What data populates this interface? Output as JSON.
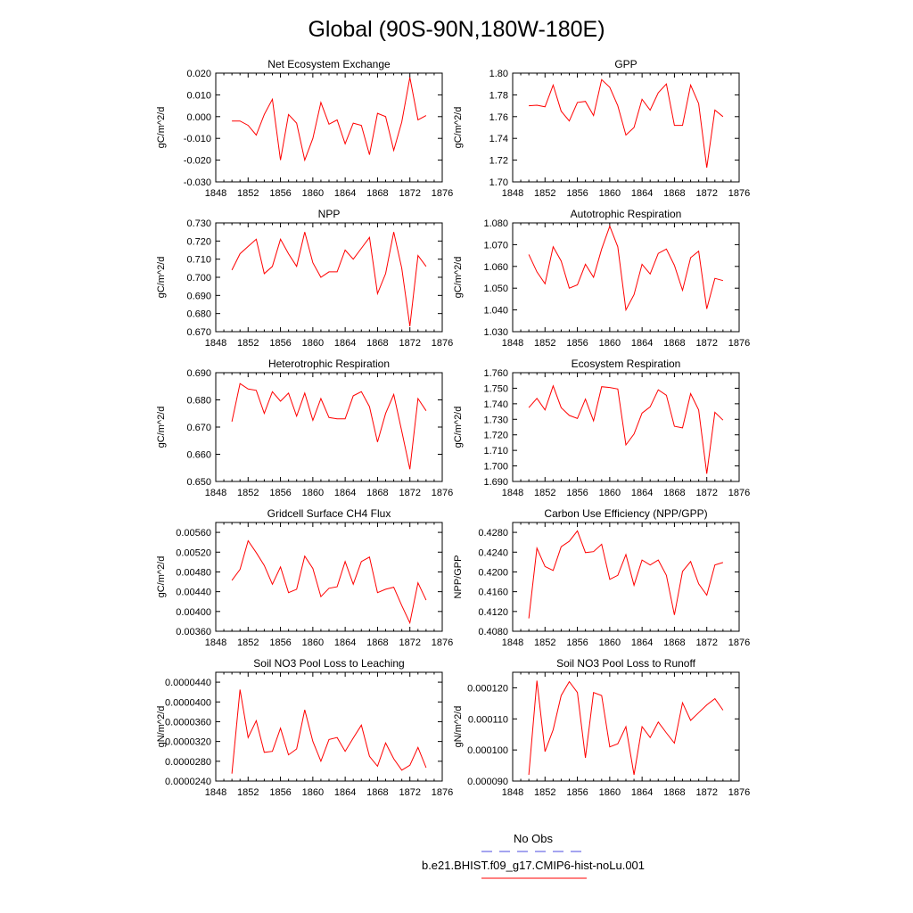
{
  "figure": {
    "title": "Global (90S-90N,180W-180E)",
    "legend": {
      "entries": [
        {
          "label": "No Obs",
          "color": "#4a4ae0",
          "style": "dashed"
        },
        {
          "label": "b.e21.BHIST.f09_g17.CMIP6-hist-noLu.001",
          "color": "#ff0000",
          "style": "solid"
        }
      ]
    }
  },
  "chart_data": [
    {
      "type": "line",
      "title": "Net Ecosystem Exchange",
      "ylabel": "gC/m^2/d",
      "xlim": [
        1848,
        1876
      ],
      "xticks": [
        1848,
        1852,
        1856,
        1860,
        1864,
        1868,
        1872,
        1876
      ],
      "ylim": [
        -0.03,
        0.02
      ],
      "yticks": [
        -0.03,
        -0.02,
        -0.01,
        0.0,
        0.01,
        0.02
      ],
      "ytick_labels": [
        "-0.030",
        "-0.020",
        "-0.010",
        "0.000",
        "0.010",
        "0.020"
      ],
      "series": [
        {
          "color": "#ff0000",
          "x": [
            1850,
            1851,
            1852,
            1853,
            1854,
            1855,
            1856,
            1857,
            1858,
            1859,
            1860,
            1861,
            1862,
            1863,
            1864,
            1865,
            1866,
            1867,
            1868,
            1869,
            1870,
            1871,
            1872,
            1873,
            1874
          ],
          "y": [
            -0.002,
            -0.002,
            -0.004,
            -0.0085,
            0.001,
            0.008,
            -0.02,
            0.001,
            -0.003,
            -0.02,
            -0.01,
            0.0065,
            -0.0035,
            -0.0015,
            -0.0125,
            -0.003,
            -0.004,
            -0.0175,
            0.0015,
            0.0,
            -0.0155,
            -0.0025,
            0.018,
            -0.0015,
            0.0005
          ]
        }
      ]
    },
    {
      "type": "line",
      "title": "GPP",
      "ylabel": "gC/m^2/d",
      "xlim": [
        1848,
        1876
      ],
      "xticks": [
        1848,
        1852,
        1856,
        1860,
        1864,
        1868,
        1872,
        1876
      ],
      "ylim": [
        1.7,
        1.8
      ],
      "yticks": [
        1.7,
        1.72,
        1.74,
        1.76,
        1.78,
        1.8
      ],
      "ytick_labels": [
        "1.70",
        "1.72",
        "1.74",
        "1.76",
        "1.78",
        "1.80"
      ],
      "series": [
        {
          "color": "#ff0000",
          "x": [
            1850,
            1851,
            1852,
            1853,
            1854,
            1855,
            1856,
            1857,
            1858,
            1859,
            1860,
            1861,
            1862,
            1863,
            1864,
            1865,
            1866,
            1867,
            1868,
            1869,
            1870,
            1871,
            1872,
            1873,
            1874
          ],
          "y": [
            1.77,
            1.7705,
            1.769,
            1.789,
            1.765,
            1.756,
            1.773,
            1.774,
            1.761,
            1.794,
            1.787,
            1.77,
            1.743,
            1.75,
            1.776,
            1.766,
            1.782,
            1.79,
            1.752,
            1.752,
            1.789,
            1.772,
            1.713,
            1.766,
            1.76
          ]
        }
      ]
    },
    {
      "type": "line",
      "title": "NPP",
      "ylabel": "gC/m^2/d",
      "xlim": [
        1848,
        1876
      ],
      "xticks": [
        1848,
        1852,
        1856,
        1860,
        1864,
        1868,
        1872,
        1876
      ],
      "ylim": [
        0.67,
        0.73
      ],
      "yticks": [
        0.67,
        0.68,
        0.69,
        0.7,
        0.71,
        0.72,
        0.73
      ],
      "ytick_labels": [
        "0.670",
        "0.680",
        "0.690",
        "0.700",
        "0.710",
        "0.720",
        "0.730"
      ],
      "series": [
        {
          "color": "#ff0000",
          "x": [
            1850,
            1851,
            1852,
            1853,
            1854,
            1855,
            1856,
            1857,
            1858,
            1859,
            1860,
            1861,
            1862,
            1863,
            1864,
            1865,
            1866,
            1867,
            1868,
            1869,
            1870,
            1871,
            1872,
            1873,
            1874
          ],
          "y": [
            0.704,
            0.713,
            0.717,
            0.721,
            0.702,
            0.706,
            0.721,
            0.713,
            0.706,
            0.725,
            0.708,
            0.7,
            0.703,
            0.703,
            0.715,
            0.71,
            0.716,
            0.722,
            0.691,
            0.702,
            0.725,
            0.705,
            0.673,
            0.712,
            0.706
          ]
        }
      ]
    },
    {
      "type": "line",
      "title": "Autotrophic Respiration",
      "ylabel": "gC/m^2/d",
      "xlim": [
        1848,
        1876
      ],
      "xticks": [
        1848,
        1852,
        1856,
        1860,
        1864,
        1868,
        1872,
        1876
      ],
      "ylim": [
        1.03,
        1.08
      ],
      "yticks": [
        1.03,
        1.04,
        1.05,
        1.06,
        1.07,
        1.08
      ],
      "ytick_labels": [
        "1.030",
        "1.040",
        "1.050",
        "1.060",
        "1.070",
        "1.080"
      ],
      "series": [
        {
          "color": "#ff0000",
          "x": [
            1850,
            1851,
            1852,
            1853,
            1854,
            1855,
            1856,
            1857,
            1858,
            1859,
            1860,
            1861,
            1862,
            1863,
            1864,
            1865,
            1866,
            1867,
            1868,
            1869,
            1870,
            1871,
            1872,
            1873,
            1874
          ],
          "y": [
            1.0655,
            1.0575,
            1.052,
            1.069,
            1.0625,
            1.05,
            1.0515,
            1.061,
            1.055,
            1.068,
            1.0785,
            1.069,
            1.04,
            1.047,
            1.061,
            1.0565,
            1.066,
            1.068,
            1.0605,
            1.049,
            1.064,
            1.067,
            1.0405,
            1.0545,
            1.0535
          ]
        }
      ]
    },
    {
      "type": "line",
      "title": "Heterotrophic Respiration",
      "ylabel": "gC/m^2/d",
      "xlim": [
        1848,
        1876
      ],
      "xticks": [
        1848,
        1852,
        1856,
        1860,
        1864,
        1868,
        1872,
        1876
      ],
      "ylim": [
        0.65,
        0.69
      ],
      "yticks": [
        0.65,
        0.66,
        0.67,
        0.68,
        0.69
      ],
      "ytick_labels": [
        "0.650",
        "0.660",
        "0.670",
        "0.680",
        "0.690"
      ],
      "series": [
        {
          "color": "#ff0000",
          "x": [
            1850,
            1851,
            1852,
            1853,
            1854,
            1855,
            1856,
            1857,
            1858,
            1859,
            1860,
            1861,
            1862,
            1863,
            1864,
            1865,
            1866,
            1867,
            1868,
            1869,
            1870,
            1871,
            1872,
            1873,
            1874
          ],
          "y": [
            0.672,
            0.686,
            0.684,
            0.6835,
            0.675,
            0.683,
            0.6795,
            0.6825,
            0.674,
            0.6825,
            0.6725,
            0.6805,
            0.6735,
            0.673,
            0.673,
            0.6815,
            0.683,
            0.6775,
            0.6645,
            0.675,
            0.682,
            0.6685,
            0.6545,
            0.6805,
            0.676
          ]
        }
      ]
    },
    {
      "type": "line",
      "title": "Ecosystem Respiration",
      "ylabel": "gC/m^2/d",
      "xlim": [
        1848,
        1876
      ],
      "xticks": [
        1848,
        1852,
        1856,
        1860,
        1864,
        1868,
        1872,
        1876
      ],
      "ylim": [
        1.69,
        1.76
      ],
      "yticks": [
        1.69,
        1.7,
        1.71,
        1.72,
        1.73,
        1.74,
        1.75,
        1.76
      ],
      "ytick_labels": [
        "1.690",
        "1.700",
        "1.710",
        "1.720",
        "1.730",
        "1.740",
        "1.750",
        "1.760"
      ],
      "series": [
        {
          "color": "#ff0000",
          "x": [
            1850,
            1851,
            1852,
            1853,
            1854,
            1855,
            1856,
            1857,
            1858,
            1859,
            1860,
            1861,
            1862,
            1863,
            1864,
            1865,
            1866,
            1867,
            1868,
            1869,
            1870,
            1871,
            1872,
            1873,
            1874
          ],
          "y": [
            1.7375,
            1.7435,
            1.736,
            1.7515,
            1.7375,
            1.7325,
            1.7305,
            1.743,
            1.729,
            1.751,
            1.7505,
            1.7495,
            1.7135,
            1.7205,
            1.734,
            1.738,
            1.749,
            1.7455,
            1.7255,
            1.7245,
            1.7465,
            1.736,
            1.695,
            1.7345,
            1.7295
          ]
        }
      ]
    },
    {
      "type": "line",
      "title": "Gridcell Surface CH4 Flux",
      "ylabel": "gC/m^2/d",
      "xlim": [
        1848,
        1876
      ],
      "xticks": [
        1848,
        1852,
        1856,
        1860,
        1864,
        1868,
        1872,
        1876
      ],
      "ylim": [
        0.0036,
        0.0058
      ],
      "yticks": [
        0.0036,
        0.004,
        0.0044,
        0.0048,
        0.0052,
        0.0056
      ],
      "ytick_labels": [
        "0.00360",
        "0.00400",
        "0.00440",
        "0.00480",
        "0.00520",
        "0.00560"
      ],
      "series": [
        {
          "color": "#ff0000",
          "x": [
            1850,
            1851,
            1852,
            1853,
            1854,
            1855,
            1856,
            1857,
            1858,
            1859,
            1860,
            1861,
            1862,
            1863,
            1864,
            1865,
            1866,
            1867,
            1868,
            1869,
            1870,
            1871,
            1872,
            1873,
            1874
          ],
          "y": [
            0.00463,
            0.00485,
            0.00543,
            0.00519,
            0.00493,
            0.00455,
            0.0049,
            0.00438,
            0.00445,
            0.00512,
            0.00487,
            0.0043,
            0.00447,
            0.0045,
            0.00501,
            0.00455,
            0.00501,
            0.0051,
            0.00438,
            0.00445,
            0.00449,
            0.00412,
            0.00377,
            0.00458,
            0.00423
          ]
        }
      ]
    },
    {
      "type": "line",
      "title": "Carbon Use Efficiency (NPP/GPP)",
      "ylabel": "NPP/GPP",
      "xlim": [
        1848,
        1876
      ],
      "xticks": [
        1848,
        1852,
        1856,
        1860,
        1864,
        1868,
        1872,
        1876
      ],
      "ylim": [
        0.408,
        0.43
      ],
      "yticks": [
        0.408,
        0.412,
        0.416,
        0.42,
        0.424,
        0.428
      ],
      "ytick_labels": [
        "0.4080",
        "0.4120",
        "0.4160",
        "0.4200",
        "0.4240",
        "0.4280"
      ],
      "series": [
        {
          "color": "#ff0000",
          "x": [
            1850,
            1851,
            1852,
            1853,
            1854,
            1855,
            1856,
            1857,
            1858,
            1859,
            1860,
            1861,
            1862,
            1863,
            1864,
            1865,
            1866,
            1867,
            1868,
            1869,
            1870,
            1871,
            1872,
            1873,
            1874
          ],
          "y": [
            0.4106,
            0.4248,
            0.4211,
            0.4203,
            0.4251,
            0.4262,
            0.4283,
            0.4239,
            0.4241,
            0.4256,
            0.4185,
            0.4193,
            0.4235,
            0.4173,
            0.4224,
            0.4214,
            0.4224,
            0.4193,
            0.4113,
            0.4201,
            0.4221,
            0.4176,
            0.4153,
            0.4214,
            0.4219
          ]
        }
      ]
    },
    {
      "type": "line",
      "title": "Soil NO3 Pool Loss to Leaching",
      "ylabel": "gN/m^2/d",
      "xlim": [
        1848,
        1876
      ],
      "xticks": [
        1848,
        1852,
        1856,
        1860,
        1864,
        1868,
        1872,
        1876
      ],
      "ylim": [
        2.4e-05,
        4.6e-05
      ],
      "yticks": [
        2.4e-05,
        2.8e-05,
        3.2e-05,
        3.6e-05,
        4e-05,
        4.4e-05
      ],
      "ytick_labels": [
        "0.0000240",
        "0.0000280",
        "0.0000320",
        "0.0000360",
        "0.0000400",
        "0.0000440"
      ],
      "series": [
        {
          "color": "#ff0000",
          "x": [
            1850,
            1851,
            1852,
            1853,
            1854,
            1855,
            1856,
            1857,
            1858,
            1859,
            1860,
            1861,
            1862,
            1863,
            1864,
            1865,
            1866,
            1867,
            1868,
            1869,
            1870,
            1871,
            1872,
            1873,
            1874
          ],
          "y": [
            2.55e-05,
            4.25e-05,
            3.28e-05,
            3.62e-05,
            2.98e-05,
            3e-05,
            3.47e-05,
            2.93e-05,
            3.05e-05,
            3.84e-05,
            3.2e-05,
            2.8e-05,
            3.24e-05,
            3.28e-05,
            3e-05,
            3.27e-05,
            3.53e-05,
            2.9e-05,
            2.7e-05,
            3.17e-05,
            2.85e-05,
            2.62e-05,
            2.72e-05,
            3.08e-05,
            2.67e-05
          ]
        }
      ]
    },
    {
      "type": "line",
      "title": "Soil NO3 Pool Loss to Runoff",
      "ylabel": "gN/m^2/d",
      "xlim": [
        1848,
        1876
      ],
      "xticks": [
        1848,
        1852,
        1856,
        1860,
        1864,
        1868,
        1872,
        1876
      ],
      "ylim": [
        9e-05,
        0.000125
      ],
      "yticks": [
        9e-05,
        0.0001,
        0.00011,
        0.00012
      ],
      "ytick_labels": [
        "0.000090",
        "0.000100",
        "0.000110",
        "0.000120"
      ],
      "series": [
        {
          "color": "#ff0000",
          "x": [
            1850,
            1851,
            1852,
            1853,
            1854,
            1855,
            1856,
            1857,
            1858,
            1859,
            1860,
            1861,
            1862,
            1863,
            1864,
            1865,
            1866,
            1867,
            1868,
            1869,
            1870,
            1871,
            1872,
            1873,
            1874
          ],
          "y": [
            9.2e-05,
            0.0001223,
            9.95e-05,
            0.0001065,
            0.0001175,
            0.000122,
            0.0001185,
            9.75e-05,
            0.0001185,
            0.0001175,
            0.000101,
            0.000102,
            0.0001075,
            9.2e-05,
            0.0001075,
            0.000104,
            0.000109,
            0.0001055,
            0.0001022,
            0.0001152,
            0.0001095,
            0.000112,
            0.0001145,
            0.0001165,
            0.0001128
          ]
        }
      ]
    }
  ]
}
